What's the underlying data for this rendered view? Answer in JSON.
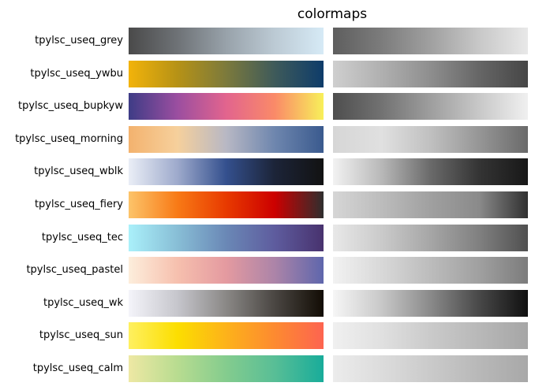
{
  "chart_data": {
    "type": "colormap-swatches",
    "title": "colormaps",
    "panels": [
      "color",
      "grayscale"
    ],
    "colormaps": [
      {
        "name": "tpylsc_useq_grey",
        "colors": [
          "#4a4a4a",
          "#6e7276",
          "#98a2aa",
          "#bccad4",
          "#d6eaf6"
        ],
        "gray": [
          "#5e5e5e",
          "#7c7c7c",
          "#a0a0a0",
          "#c8c8c8",
          "#e8e8e8"
        ]
      },
      {
        "name": "tpylsc_useq_ywbu",
        "colors": [
          "#f2b30a",
          "#b69216",
          "#7c7a3c",
          "#3e5a5a",
          "#0e3c6a"
        ],
        "gray": [
          "#cfcfcf",
          "#b0b0b0",
          "#8e8e8e",
          "#666666",
          "#464646"
        ]
      },
      {
        "name": "tpylsc_useq_bupkyw",
        "colors": [
          "#3e3c86",
          "#9b4ea0",
          "#e2648e",
          "#fa8a68",
          "#f8f05a"
        ],
        "gray": [
          "#4e4e4e",
          "#727272",
          "#9e9e9e",
          "#c8c8c8",
          "#f0f0f0"
        ]
      },
      {
        "name": "tpylsc_useq_morning",
        "colors": [
          "#f3b26e",
          "#f6d09c",
          "#b8b8c4",
          "#6e86ae",
          "#3a5a8e"
        ],
        "gray": [
          "#d6d6d6",
          "#e0e0e0",
          "#c0c0c0",
          "#969696",
          "#6a6a6a"
        ]
      },
      {
        "name": "tpylsc_useq_wblk",
        "colors": [
          "#eaeef6",
          "#9eaacc",
          "#34508e",
          "#1c2438",
          "#121212"
        ],
        "gray": [
          "#f2f2f2",
          "#b8b8b8",
          "#6a6a6a",
          "#343434",
          "#181818"
        ]
      },
      {
        "name": "tpylsc_useq_fiery",
        "colors": [
          "#fcc46a",
          "#f87a16",
          "#e83a00",
          "#cc0000",
          "#2e2e2e"
        ],
        "gray": [
          "#d6d6d6",
          "#bcbcbc",
          "#a0a0a0",
          "#8a8a8a",
          "#303030"
        ]
      },
      {
        "name": "tpylsc_useq_tec",
        "colors": [
          "#aaf0fa",
          "#88bed6",
          "#6a88b6",
          "#5e5c9e",
          "#48326e"
        ],
        "gray": [
          "#e8e8e8",
          "#cacaca",
          "#a6a6a6",
          "#808080",
          "#505050"
        ]
      },
      {
        "name": "tpylsc_useq_pastel",
        "colors": [
          "#fdeedc",
          "#f6c0ae",
          "#e49aa0",
          "#ac84a8",
          "#5e66ac"
        ],
        "gray": [
          "#f2f2f2",
          "#d8d8d8",
          "#bcbcbc",
          "#a0a0a0",
          "#7c7c7c"
        ]
      },
      {
        "name": "tpylsc_useq_wk",
        "colors": [
          "#f4f4fa",
          "#c6c6cc",
          "#8a8886",
          "#4a4642",
          "#120c04"
        ],
        "gray": [
          "#f6f6f6",
          "#c8c8c8",
          "#8a8a8a",
          "#484848",
          "#101010"
        ]
      },
      {
        "name": "tpylsc_useq_sun",
        "colors": [
          "#fef060",
          "#fcde00",
          "#fdb21a",
          "#fd8a30",
          "#fd6450"
        ],
        "gray": [
          "#f0f0f0",
          "#e0e0e0",
          "#cacaca",
          "#b8b8b8",
          "#a6a6a6"
        ]
      },
      {
        "name": "tpylsc_useq_calm",
        "colors": [
          "#eee8a4",
          "#b8dc90",
          "#84cc8e",
          "#58be96",
          "#18ac9a"
        ],
        "gray": [
          "#ececec",
          "#dcdcdc",
          "#cacaca",
          "#b8b8b8",
          "#a8a8a8"
        ]
      }
    ]
  }
}
